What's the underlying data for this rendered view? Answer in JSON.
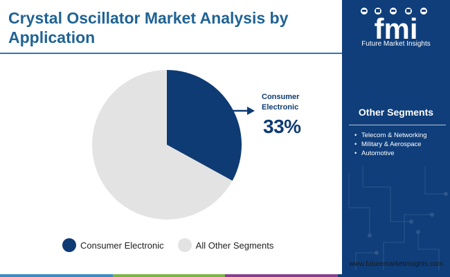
{
  "title": "Crystal Oscillator Market Analysis by Application",
  "chart_data": {
    "type": "pie",
    "slices": [
      {
        "label": "Consumer Electronic",
        "value": 33,
        "color": "#0e3b73"
      },
      {
        "label": "All Other Segments",
        "value": 67,
        "color": "#e3e3e3"
      }
    ],
    "callout": {
      "label": "Consumer Electronic",
      "value_text": "33%"
    },
    "legend_position": "bottom"
  },
  "sidebar": {
    "logo_text": "fmi",
    "logo_caption": "Future Market Insights",
    "heading": "Other Segments",
    "items": [
      "Telecom & Networking",
      "Military & Aerospace",
      "Automotive"
    ]
  },
  "website": "www.futuremarketinsights.com",
  "colors": {
    "brand_dark": "#0f3e7a",
    "title_blue": "#1f6394",
    "footer": [
      "#3a8bc8",
      "#7ab642",
      "#8a3e93",
      "#0f3e7a"
    ]
  }
}
